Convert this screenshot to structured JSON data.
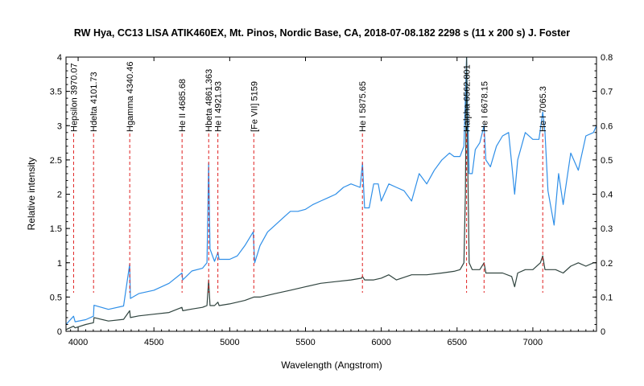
{
  "chart_data": {
    "type": "line",
    "title": "RW Hya, CC13 LISA ATIK460EX, Mt. Pinos, Nordic Base, CA,  2018-07-08.182  2298 s (11 x 200 s)  J. Foster",
    "xlabel": "Wavelength (Angstrom)",
    "ylabel": "Relative intensity",
    "xlim": [
      3920,
      7420
    ],
    "ylim": [
      0,
      4
    ],
    "y2lim": [
      0,
      0.8
    ],
    "xticks": [
      "4000",
      "4500",
      "5000",
      "5500",
      "6000",
      "6500",
      "7000"
    ],
    "yticks": [
      "0",
      "0.5",
      "1",
      "1.5",
      "2",
      "2.5",
      "3",
      "3.5",
      "4"
    ],
    "y2ticks": [
      "0",
      "0.1",
      "0.2",
      "0.3",
      "0.4",
      "0.5",
      "0.6",
      "0.7",
      "0.8"
    ],
    "grid": false,
    "line_markers": [
      {
        "label": "Hepsilon 3970.07",
        "x": 3970.07
      },
      {
        "label": "Hdelta 4101.73",
        "x": 4101.73
      },
      {
        "label": "Hgamma 4340.46",
        "x": 4340.46
      },
      {
        "label": "He II 4685.68",
        "x": 4685.68
      },
      {
        "label": "Hbeta 4861.363",
        "x": 4861.363
      },
      {
        "label": "He I 4921.93",
        "x": 4921.93
      },
      {
        "label": "[Fe VII] 5159",
        "x": 5159
      },
      {
        "label": "He I 5875.65",
        "x": 5875.65
      },
      {
        "label": "Halpha 6562.801",
        "x": 6562.801
      },
      {
        "label": "He I 6678.15",
        "x": 6678.15
      },
      {
        "label": "He I 7065.3",
        "x": 7065.3
      }
    ],
    "series": [
      {
        "color": "#2f8fe8",
        "axis": "left",
        "x": [
          3920,
          3970,
          3980,
          4050,
          4101,
          4105,
          4200,
          4300,
          4340,
          4345,
          4400,
          4500,
          4600,
          4685,
          4690,
          4750,
          4820,
          4850,
          4861,
          4870,
          4900,
          4922,
          4930,
          5000,
          5050,
          5100,
          5155,
          5165,
          5200,
          5250,
          5300,
          5350,
          5400,
          5450,
          5500,
          5550,
          5600,
          5650,
          5700,
          5750,
          5800,
          5860,
          5876,
          5890,
          5920,
          5950,
          5980,
          6000,
          6050,
          6100,
          6150,
          6200,
          6250,
          6300,
          6350,
          6400,
          6450,
          6480,
          6520,
          6545,
          6555,
          6563,
          6570,
          6580,
          6600,
          6620,
          6650,
          6678,
          6690,
          6720,
          6760,
          6800,
          6840,
          6860,
          6880,
          6900,
          6950,
          7000,
          7040,
          7065,
          7080,
          7100,
          7140,
          7170,
          7200,
          7250,
          7300,
          7350,
          7400,
          7420
        ],
        "y": [
          0.1,
          0.22,
          0.14,
          0.17,
          0.22,
          0.38,
          0.32,
          0.37,
          0.98,
          0.48,
          0.55,
          0.6,
          0.7,
          0.85,
          0.75,
          0.88,
          0.92,
          1.0,
          2.45,
          1.2,
          1.02,
          1.15,
          1.05,
          1.05,
          1.1,
          1.25,
          1.45,
          1.0,
          1.25,
          1.45,
          1.55,
          1.65,
          1.75,
          1.75,
          1.78,
          1.85,
          1.9,
          1.95,
          2.0,
          2.1,
          2.15,
          2.1,
          2.45,
          1.8,
          1.8,
          2.15,
          2.15,
          1.9,
          2.15,
          2.1,
          2.05,
          1.9,
          2.3,
          2.15,
          2.35,
          2.5,
          2.6,
          2.55,
          2.55,
          2.7,
          3.4,
          4.0,
          3.2,
          2.3,
          2.3,
          2.65,
          2.75,
          3.0,
          2.5,
          2.4,
          2.7,
          2.85,
          2.9,
          2.45,
          2.0,
          2.5,
          2.9,
          2.8,
          2.8,
          3.2,
          2.9,
          2.05,
          1.55,
          2.3,
          1.85,
          2.6,
          2.35,
          2.85,
          2.9,
          3.0
        ]
      },
      {
        "color": "#30443f",
        "axis": "right",
        "x": [
          3920,
          3970,
          3980,
          4050,
          4101,
          4105,
          4200,
          4300,
          4340,
          4345,
          4400,
          4500,
          4600,
          4685,
          4690,
          4750,
          4820,
          4850,
          4861,
          4870,
          4900,
          4922,
          4930,
          5000,
          5100,
          5159,
          5200,
          5300,
          5400,
          5500,
          5600,
          5700,
          5800,
          5870,
          5876,
          5890,
          5950,
          6000,
          6050,
          6100,
          6200,
          6300,
          6400,
          6480,
          6520,
          6545,
          6555,
          6563,
          6570,
          6580,
          6600,
          6650,
          6678,
          6690,
          6750,
          6800,
          6860,
          6880,
          6900,
          6950,
          7000,
          7050,
          7065,
          7080,
          7150,
          7200,
          7250,
          7300,
          7350,
          7400,
          7420
        ],
        "y": [
          0.005,
          0.015,
          0.01,
          0.02,
          0.025,
          0.04,
          0.03,
          0.035,
          0.06,
          0.04,
          0.045,
          0.05,
          0.055,
          0.07,
          0.06,
          0.065,
          0.07,
          0.075,
          0.15,
          0.075,
          0.075,
          0.085,
          0.075,
          0.08,
          0.09,
          0.1,
          0.1,
          0.11,
          0.12,
          0.13,
          0.14,
          0.145,
          0.15,
          0.155,
          0.16,
          0.15,
          0.15,
          0.155,
          0.165,
          0.15,
          0.165,
          0.165,
          0.17,
          0.175,
          0.18,
          0.2,
          0.4,
          0.8,
          0.5,
          0.2,
          0.18,
          0.18,
          0.2,
          0.17,
          0.17,
          0.17,
          0.16,
          0.13,
          0.17,
          0.18,
          0.18,
          0.2,
          0.22,
          0.18,
          0.18,
          0.17,
          0.19,
          0.2,
          0.19,
          0.2,
          0.2
        ]
      }
    ]
  }
}
